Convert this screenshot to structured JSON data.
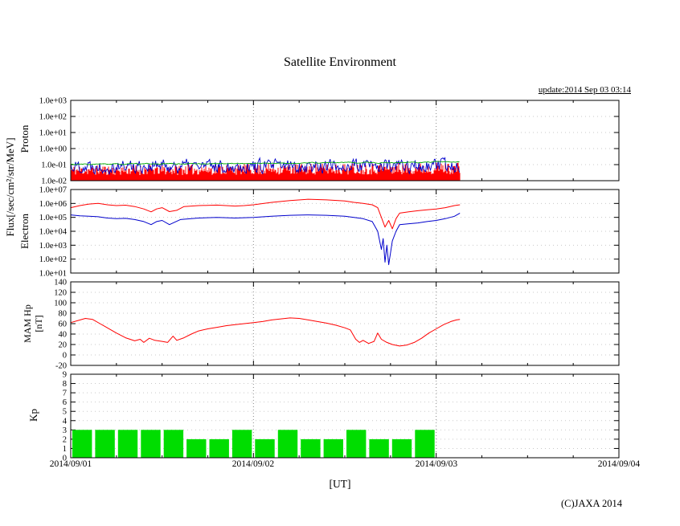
{
  "title": "Satellite Environment",
  "update_text": "update:2014 Sep 03 03:14",
  "copyright_text": "(C)JAXA 2014",
  "xaxis": {
    "label": "[UT]",
    "range_days": 3,
    "tick_labels": [
      "2014/09/01",
      "2014/09/02",
      "2014/09/03",
      "2014/09/04"
    ]
  },
  "left_labels": {
    "flux_unit": "Flux[/sec/cm²/str/MeV]",
    "proton": "Proton",
    "electron": "Electron",
    "mam_line1": "MAM Hp",
    "mam_line2": "[nT]",
    "kp": "Kp"
  },
  "chart_data": [
    {
      "name": "proton-flux",
      "type": "noise-band",
      "yscale": "log",
      "ylim": [
        0.01,
        1000
      ],
      "ytick_values": [
        1000,
        100,
        10,
        1,
        0.1,
        0.01
      ],
      "ytick_labels": [
        "1.0e+03",
        "1.0e+02",
        "1.0e+01",
        "1.0e+00",
        "1.0e-01",
        "1.0e-02"
      ],
      "data_end_day": 2.13,
      "series": [
        {
          "name": "proton-channel-red",
          "color": "#ff0000",
          "style": "noise-fill",
          "x": [
            0,
            2.13
          ],
          "y_band": [
            0.01,
            0.09
          ],
          "y_band_end": [
            0.01,
            0.14
          ],
          "seed": 11
        },
        {
          "name": "proton-channel-blue",
          "color": "#0000cc",
          "style": "noise",
          "x": [
            0,
            2.13
          ],
          "y_band": [
            0.022,
            0.3
          ],
          "jitter": 0.7,
          "seed": 22
        },
        {
          "name": "proton-channel-green",
          "color": "#00aa00",
          "style": "noise",
          "x": [
            0,
            2.13
          ],
          "y_band": [
            0.08,
            0.13
          ],
          "y_band_end": [
            0.11,
            0.19
          ],
          "jitter": 0.2,
          "seed": 33
        }
      ]
    },
    {
      "name": "electron-flux",
      "type": "line",
      "yscale": "log",
      "ylim": [
        10,
        10000000
      ],
      "ytick_values": [
        10000000,
        1000000,
        100000,
        10000,
        1000,
        100,
        10
      ],
      "ytick_labels": [
        "1.0e+07",
        "1.0e+06",
        "1.0e+05",
        "1.0e+04",
        "1.0e+03",
        "1.0e+02",
        "1.0e+01"
      ],
      "data_end_day": 2.13,
      "series": [
        {
          "name": "electron-high-red",
          "color": "#ff0000",
          "style": "points",
          "points": [
            [
              0.0,
              500000
            ],
            [
              0.05,
              700000
            ],
            [
              0.1,
              900000
            ],
            [
              0.15,
              1000000
            ],
            [
              0.2,
              800000
            ],
            [
              0.25,
              700000
            ],
            [
              0.3,
              750000
            ],
            [
              0.35,
              600000
            ],
            [
              0.4,
              400000
            ],
            [
              0.44,
              250000
            ],
            [
              0.47,
              400000
            ],
            [
              0.5,
              500000
            ],
            [
              0.54,
              260000
            ],
            [
              0.58,
              320000
            ],
            [
              0.62,
              600000
            ],
            [
              0.7,
              700000
            ],
            [
              0.8,
              760000
            ],
            [
              0.9,
              650000
            ],
            [
              0.95,
              700000
            ],
            [
              1.0,
              800000
            ],
            [
              1.1,
              1200000
            ],
            [
              1.2,
              1600000
            ],
            [
              1.3,
              2000000
            ],
            [
              1.4,
              1800000
            ],
            [
              1.5,
              1500000
            ],
            [
              1.55,
              1200000
            ],
            [
              1.6,
              1000000
            ],
            [
              1.65,
              800000
            ],
            [
              1.68,
              500000
            ],
            [
              1.7,
              100000
            ],
            [
              1.72,
              20000
            ],
            [
              1.74,
              60000
            ],
            [
              1.76,
              15000
            ],
            [
              1.78,
              80000
            ],
            [
              1.8,
              200000
            ],
            [
              1.85,
              250000
            ],
            [
              1.9,
              300000
            ],
            [
              1.95,
              350000
            ],
            [
              2.0,
              400000
            ],
            [
              2.05,
              500000
            ],
            [
              2.1,
              700000
            ],
            [
              2.13,
              800000
            ]
          ]
        },
        {
          "name": "electron-low-blue",
          "color": "#0000cc",
          "style": "points",
          "points": [
            [
              0.0,
              150000
            ],
            [
              0.05,
              130000
            ],
            [
              0.1,
              120000
            ],
            [
              0.15,
              110000
            ],
            [
              0.2,
              90000
            ],
            [
              0.25,
              80000
            ],
            [
              0.3,
              85000
            ],
            [
              0.35,
              70000
            ],
            [
              0.4,
              50000
            ],
            [
              0.44,
              30000
            ],
            [
              0.47,
              50000
            ],
            [
              0.5,
              60000
            ],
            [
              0.54,
              30000
            ],
            [
              0.6,
              70000
            ],
            [
              0.7,
              90000
            ],
            [
              0.8,
              100000
            ],
            [
              0.9,
              90000
            ],
            [
              1.0,
              100000
            ],
            [
              1.1,
              120000
            ],
            [
              1.2,
              140000
            ],
            [
              1.3,
              150000
            ],
            [
              1.4,
              140000
            ],
            [
              1.5,
              120000
            ],
            [
              1.55,
              100000
            ],
            [
              1.6,
              80000
            ],
            [
              1.65,
              50000
            ],
            [
              1.68,
              10000
            ],
            [
              1.7,
              500
            ],
            [
              1.71,
              3000
            ],
            [
              1.72,
              60
            ],
            [
              1.73,
              1000
            ],
            [
              1.74,
              40
            ],
            [
              1.76,
              2000
            ],
            [
              1.78,
              10000
            ],
            [
              1.8,
              30000
            ],
            [
              1.85,
              35000
            ],
            [
              1.9,
              40000
            ],
            [
              1.95,
              50000
            ],
            [
              2.0,
              60000
            ],
            [
              2.05,
              80000
            ],
            [
              2.1,
              120000
            ],
            [
              2.13,
              200000
            ]
          ]
        }
      ]
    },
    {
      "name": "mam-hp",
      "type": "line",
      "yscale": "linear",
      "ylim": [
        -20,
        140
      ],
      "ytick_values": [
        140,
        120,
        100,
        80,
        60,
        40,
        20,
        0,
        -20
      ],
      "ytick_labels": [
        "140",
        "120",
        "100",
        "80",
        "60",
        "40",
        "20",
        "0",
        "-20"
      ],
      "data_end_day": 2.13,
      "series": [
        {
          "name": "mam-hp-line",
          "color": "#ff0000",
          "style": "points",
          "points": [
            [
              0.0,
              62
            ],
            [
              0.04,
              66
            ],
            [
              0.08,
              70
            ],
            [
              0.12,
              68
            ],
            [
              0.16,
              60
            ],
            [
              0.2,
              52
            ],
            [
              0.25,
              42
            ],
            [
              0.3,
              33
            ],
            [
              0.35,
              27
            ],
            [
              0.38,
              30
            ],
            [
              0.4,
              24
            ],
            [
              0.43,
              32
            ],
            [
              0.46,
              28
            ],
            [
              0.5,
              26
            ],
            [
              0.53,
              24
            ],
            [
              0.56,
              36
            ],
            [
              0.58,
              28
            ],
            [
              0.62,
              33
            ],
            [
              0.66,
              40
            ],
            [
              0.7,
              46
            ],
            [
              0.75,
              50
            ],
            [
              0.8,
              53
            ],
            [
              0.85,
              56
            ],
            [
              0.9,
              58
            ],
            [
              0.95,
              60
            ],
            [
              1.0,
              62
            ],
            [
              1.05,
              64
            ],
            [
              1.1,
              67
            ],
            [
              1.15,
              69
            ],
            [
              1.2,
              71
            ],
            [
              1.25,
              70
            ],
            [
              1.3,
              67
            ],
            [
              1.35,
              64
            ],
            [
              1.4,
              61
            ],
            [
              1.45,
              57
            ],
            [
              1.5,
              52
            ],
            [
              1.53,
              48
            ],
            [
              1.56,
              30
            ],
            [
              1.58,
              24
            ],
            [
              1.6,
              28
            ],
            [
              1.63,
              22
            ],
            [
              1.66,
              26
            ],
            [
              1.68,
              42
            ],
            [
              1.7,
              30
            ],
            [
              1.73,
              24
            ],
            [
              1.76,
              20
            ],
            [
              1.8,
              17
            ],
            [
              1.84,
              19
            ],
            [
              1.88,
              24
            ],
            [
              1.92,
              32
            ],
            [
              1.96,
              42
            ],
            [
              2.0,
              50
            ],
            [
              2.04,
              58
            ],
            [
              2.08,
              64
            ],
            [
              2.11,
              67
            ],
            [
              2.13,
              68
            ]
          ]
        }
      ]
    },
    {
      "name": "kp-index",
      "type": "bar",
      "yscale": "linear",
      "ylim": [
        0,
        9
      ],
      "ytick_values": [
        9,
        8,
        7,
        6,
        5,
        4,
        3,
        2,
        1,
        0
      ],
      "ytick_labels": [
        "9",
        "8",
        "7",
        "6",
        "5",
        "4",
        "3",
        "2",
        "1",
        "0"
      ],
      "bar_color": "#00dd00",
      "bar_interval_hours": 3,
      "values": [
        3,
        3,
        3,
        3,
        3,
        2,
        2,
        3,
        2,
        3,
        2,
        2,
        3,
        2,
        2,
        3
      ]
    }
  ]
}
